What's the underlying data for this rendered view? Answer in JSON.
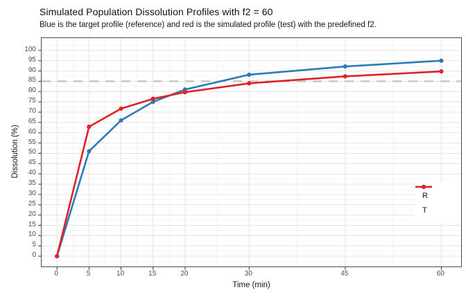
{
  "header": {
    "title": "Simulated Population Dissolution Profiles with f2 = 60",
    "subtitle": "Blue is the target profile (reference) and red is the simulated profile (test) with the predefined f2."
  },
  "chart_data": {
    "type": "line",
    "title": "Simulated Population Dissolution Profiles with f2 = 60",
    "subtitle": "Blue is the target profile (reference) and red is the simulated profile (test) with the predefined f2.",
    "xlabel": "Time (min)",
    "ylabel": "Dissolution (%)",
    "x": [
      0,
      5,
      10,
      15,
      20,
      30,
      45,
      60
    ],
    "series": [
      {
        "name": "R",
        "color": "#2b7bb9",
        "values": [
          0,
          51,
          66,
          75,
          81,
          88.2,
          92.2,
          95
        ]
      },
      {
        "name": "T",
        "color": "#e02126",
        "values": [
          0,
          62.9,
          71.7,
          76.5,
          79.7,
          84,
          87.4,
          89.8
        ]
      }
    ],
    "reference_line": {
      "y": 85,
      "color": "#c9c9c9",
      "style": "dashed"
    },
    "x_ticks": [
      0,
      5,
      10,
      15,
      20,
      30,
      45,
      60
    ],
    "y_ticks": [
      0,
      5,
      10,
      15,
      20,
      25,
      30,
      35,
      40,
      45,
      50,
      55,
      60,
      65,
      70,
      75,
      80,
      85,
      90,
      95,
      100
    ],
    "xlim": [
      -2.4,
      63.1
    ],
    "ylim": [
      -5,
      106
    ],
    "grid": true,
    "legend": {
      "position": "inside bottom-right",
      "entries": [
        "R",
        "T"
      ]
    }
  },
  "colors": {
    "grid_major": "#e3e3e3",
    "grid_minor": "#f2f2f2",
    "panel_border": "#4a4a4a",
    "tick_mark": "#333333",
    "tick_label": "#4d4d4d"
  }
}
